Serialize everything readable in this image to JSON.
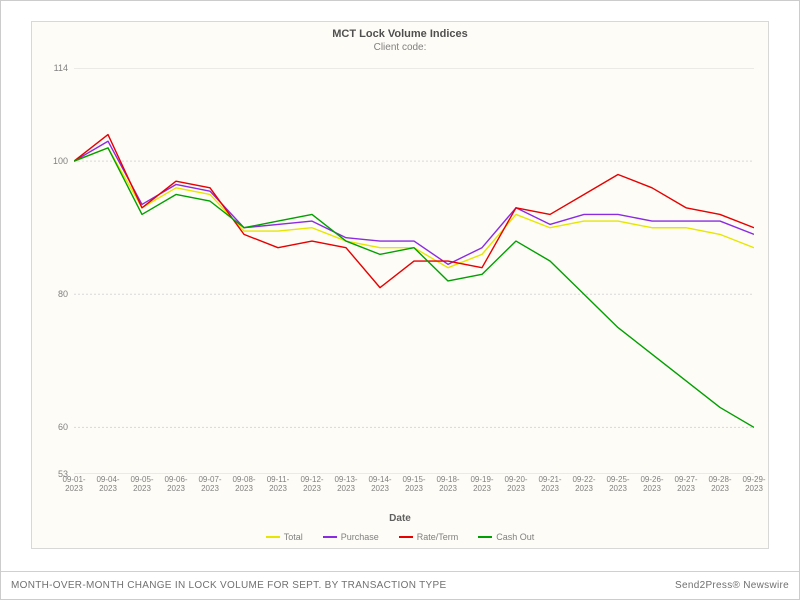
{
  "caption": {
    "left": "MONTH-OVER-MONTH CHANGE IN LOCK VOLUME FOR SEPT. BY TRANSACTION TYPE",
    "right": "Send2Press® Newswire"
  },
  "chart": {
    "type": "line",
    "title": "MCT Lock Volume Indices",
    "subtitle": "Client code:",
    "background_color": "#fefcf6",
    "plot_background": "#fefcf6",
    "grid_color": "#d8d8d8",
    "gridline_dash": "2,2",
    "x_axis_title": "Date",
    "title_fontsize": 11,
    "subtitle_fontsize": 10,
    "label_fontsize": 9,
    "x_labels": [
      "09-01-\n2023",
      "09-04-\n2023",
      "09-05-\n2023",
      "09-06-\n2023",
      "09-07-\n2023",
      "09-08-\n2023",
      "09-11-\n2023",
      "09-12-\n2023",
      "09-13-\n2023",
      "09-14-\n2023",
      "09-15-\n2023",
      "09-18-\n2023",
      "09-19-\n2023",
      "09-20-\n2023",
      "09-21-\n2023",
      "09-22-\n2023",
      "09-25-\n2023",
      "09-26-\n2023",
      "09-27-\n2023",
      "09-28-\n2023",
      "09-29-\n2023"
    ],
    "y": {
      "min": 53,
      "max": 114,
      "ticks": [
        53,
        60,
        80,
        100,
        114
      ],
      "gridlines": [
        60,
        80,
        100
      ]
    },
    "line_width": 1.4,
    "series": [
      {
        "name": "Total",
        "color": "#e6e600",
        "values": [
          100,
          102,
          93,
          96,
          95,
          89.5,
          89.5,
          90,
          88,
          87,
          87,
          84,
          86,
          92,
          90,
          91,
          91,
          90,
          90,
          89,
          87
        ]
      },
      {
        "name": "Purchase",
        "color": "#8a2be2",
        "values": [
          100,
          103,
          93.5,
          96.5,
          95.5,
          90,
          90.5,
          91,
          88.5,
          88,
          88,
          84.5,
          87,
          93,
          90.5,
          92,
          92,
          91,
          91,
          91,
          89
        ]
      },
      {
        "name": "Rate/Term",
        "color": "#e60000",
        "values": [
          100,
          104,
          93,
          97,
          96,
          89,
          87,
          88,
          87,
          81,
          85,
          85,
          84,
          93,
          92,
          95,
          98,
          96,
          93,
          92,
          90
        ]
      },
      {
        "name": "Cash Out",
        "color": "#00a000",
        "values": [
          100,
          102,
          92,
          95,
          94,
          90,
          91,
          92,
          88,
          86,
          87,
          82,
          83,
          88,
          85,
          80,
          75,
          71,
          67,
          63,
          60
        ]
      }
    ]
  }
}
